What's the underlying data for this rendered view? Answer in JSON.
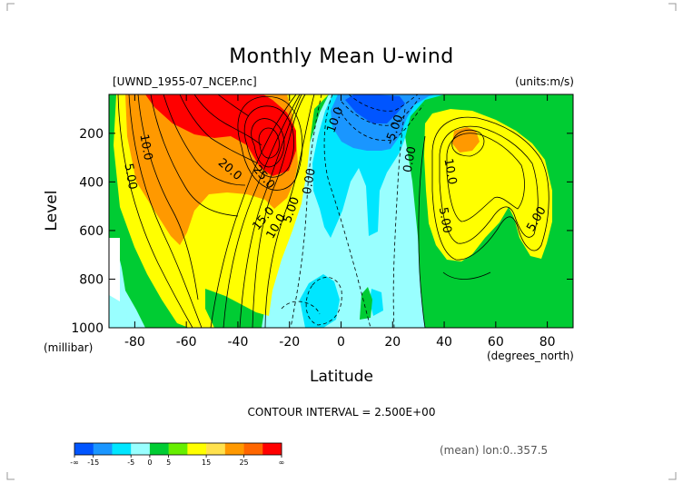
{
  "chart_data": {
    "type": "contour",
    "title": "Monthly Mean U-wind",
    "file_label": "[UWND_1955-07_NCEP.nc]",
    "units_label": "(units:m/s)",
    "xlabel": "Latitude",
    "ylabel": "Level",
    "x_units": "(degrees_north)",
    "y_units": "(millibar)",
    "xlim": [
      -90,
      90
    ],
    "ylim": [
      1000,
      40
    ],
    "y_inverted": true,
    "x_ticks": [
      "-80",
      "-60",
      "-40",
      "-20",
      "0",
      "20",
      "40",
      "60",
      "80"
    ],
    "x_tick_values": [
      -80,
      -60,
      -40,
      -20,
      0,
      20,
      40,
      60,
      80
    ],
    "y_ticks": [
      "200",
      "400",
      "600",
      "800",
      "1000"
    ],
    "y_tick_values": [
      200,
      400,
      600,
      800,
      1000
    ],
    "contour_interval_label": "CONTOUR INTERVAL = 2.500E+00",
    "footnote": "(mean) lon:0..357.5",
    "contour_labels": [
      {
        "text": "10.0",
        "lat": -77,
        "lev": 260,
        "rot": 80
      },
      {
        "text": "5.00",
        "lat": -83,
        "lev": 380,
        "rot": 80
      },
      {
        "text": "20.0",
        "lat": -44,
        "lev": 360,
        "rot": 40
      },
      {
        "text": "25.0",
        "lat": -31,
        "lev": 390,
        "rot": 50
      },
      {
        "text": "15.0",
        "lat": -29,
        "lev": 560,
        "rot": -50
      },
      {
        "text": "10.0",
        "lat": -24,
        "lev": 590,
        "rot": -60
      },
      {
        "text": "5.00",
        "lat": -18,
        "lev": 520,
        "rot": -70
      },
      {
        "text": "0.00",
        "lat": -11,
        "lev": 400,
        "rot": -80
      },
      {
        "text": "10.0",
        "lat": -1,
        "lev": 150,
        "rot": -70
      },
      {
        "text": "5.00",
        "lat": -1,
        "lev": 40,
        "rot": 0
      },
      {
        "text": "-5.00",
        "lat": 22,
        "lev": 190,
        "rot": -70
      },
      {
        "text": "0.00",
        "lat": 28,
        "lev": 310,
        "rot": -80
      },
      {
        "text": "10.0",
        "lat": 41,
        "lev": 360,
        "rot": 80
      },
      {
        "text": "5.00",
        "lat": 39,
        "lev": 560,
        "rot": 80
      },
      {
        "text": "5.00",
        "lat": 77,
        "lev": 560,
        "rot": -60
      }
    ],
    "colorbar": {
      "levels": [
        -20,
        -15,
        -10,
        -5,
        0,
        5,
        10,
        15,
        20,
        25,
        30
      ],
      "tick_labels": [
        "-∞",
        "-15",
        "-5",
        "0",
        "5",
        "15",
        "25",
        "∞"
      ],
      "tick_index": [
        0,
        1,
        3,
        4,
        5,
        7,
        9,
        11
      ],
      "colors": [
        "#0055ff",
        "#1a96ff",
        "#00e6ff",
        "#99ffff",
        "#00cc33",
        "#66ee00",
        "#ffff00",
        "#ffe14d",
        "#ff9900",
        "#ff6600",
        "#ff0000"
      ]
    },
    "fill_colors": {
      "neg15": "#0055ff",
      "neg10": "#1a96ff",
      "neg5": "#00e6ff",
      "neg0": "#99ffff",
      "pos0": "#00cc33",
      "pos5": "#ffff00",
      "pos15": "#ff9900",
      "pos25": "#ff0000"
    }
  }
}
